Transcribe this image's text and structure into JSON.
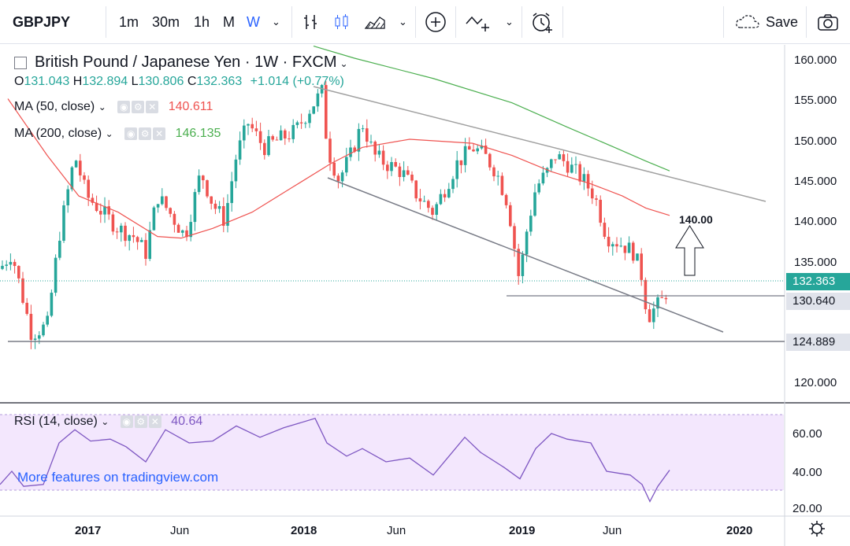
{
  "toolbar": {
    "symbol": "GBPJPY",
    "intervals": [
      "1m",
      "30m",
      "1h",
      "M",
      "W"
    ],
    "active_interval": "W",
    "save_label": "Save"
  },
  "legend": {
    "title": "British Pound / Japanese Yen · 1W · FXCM",
    "ohlc": {
      "o_label": "O",
      "o": "131.043",
      "h_label": "H",
      "h": "132.894",
      "l_label": "L",
      "l": "130.806",
      "c_label": "C",
      "c": "132.363",
      "change": "+1.014 (+0.77%)"
    },
    "ma50": {
      "label": "MA (50, close)",
      "value": "140.611"
    },
    "ma200": {
      "label": "MA (200, close)",
      "value": "146.135"
    },
    "rsi": {
      "label": "RSI (14, close)",
      "value": "40.64"
    }
  },
  "price_axis": [
    "160.000",
    "155.000",
    "150.000",
    "145.000",
    "140.000",
    "135.000",
    "120.000"
  ],
  "price_tags": {
    "last": "132.363",
    "support": "130.640",
    "low": "124.889"
  },
  "rsi_axis": [
    "60.00",
    "40.00",
    "20.00"
  ],
  "time_axis": [
    "2017",
    "Jun",
    "2018",
    "Jun",
    "2019",
    "Jun",
    "2020"
  ],
  "annotation": {
    "target": "140.00"
  },
  "promo": "More features on tradingview.com",
  "colors": {
    "up": "#26a69a",
    "down": "#ef5350",
    "ma50": "#ef5350",
    "ma200": "#4caf50",
    "rsi": "#7e57c2",
    "accent": "#2962ff"
  },
  "chart_data": {
    "type": "candlestick",
    "title": "British Pound / Japanese Yen",
    "timeframe": "1W",
    "ylim": [
      116,
      163
    ],
    "last_close": 132.363,
    "horizontal_levels": [
      130.64,
      124.889
    ],
    "ma50_last": 140.611,
    "ma200_last": 146.135,
    "rsi_last": 40.64,
    "rsi_band": [
      30,
      70
    ]
  }
}
